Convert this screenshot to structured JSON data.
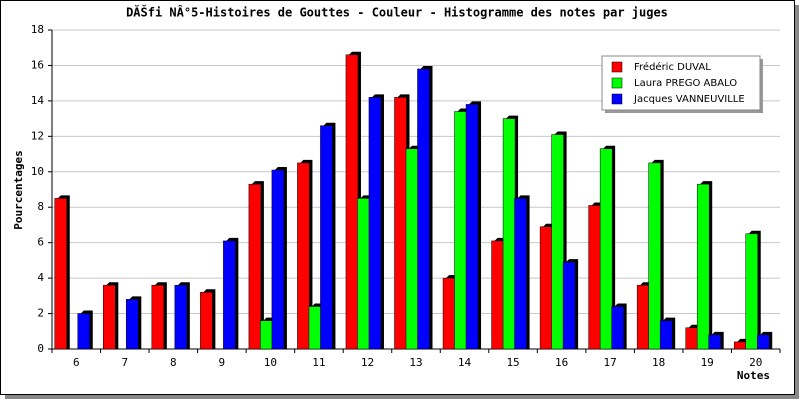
{
  "chart_data": {
    "type": "bar",
    "title": "DĂŠfi NÂ°5-Histoires de Gouttes - Couleur - Histogramme des notes par juges",
    "x_label": "Notes",
    "y_label": "Pourcentages",
    "categories": [
      "6",
      "7",
      "8",
      "9",
      "10",
      "11",
      "12",
      "13",
      "14",
      "15",
      "16",
      "17",
      "18",
      "19",
      "20"
    ],
    "series": [
      {
        "name": "Frédéric DUVAL",
        "color": "#ff0000",
        "values": [
          8.5,
          3.6,
          3.6,
          3.2,
          9.3,
          10.5,
          16.6,
          14.2,
          4.0,
          6.1,
          6.9,
          8.1,
          3.6,
          1.2,
          0.4
        ]
      },
      {
        "name": "Laura PREGO ABALO",
        "color": "#00ff00",
        "values": [
          0,
          0,
          0,
          0,
          1.6,
          2.4,
          8.5,
          11.3,
          13.4,
          13.0,
          12.1,
          11.3,
          10.5,
          9.3,
          6.5
        ]
      },
      {
        "name": "Jacques VANNEUVILLE",
        "color": "#0000ff",
        "values": [
          2.0,
          2.8,
          3.6,
          6.1,
          10.1,
          12.6,
          14.2,
          15.8,
          13.8,
          8.5,
          4.9,
          2.4,
          1.6,
          0.8,
          0.8
        ]
      }
    ],
    "ylim": [
      0,
      18
    ],
    "yticks": [
      0,
      2,
      4,
      6,
      8,
      10,
      12,
      14,
      16,
      18
    ],
    "grid": true,
    "legend": "top-right"
  }
}
